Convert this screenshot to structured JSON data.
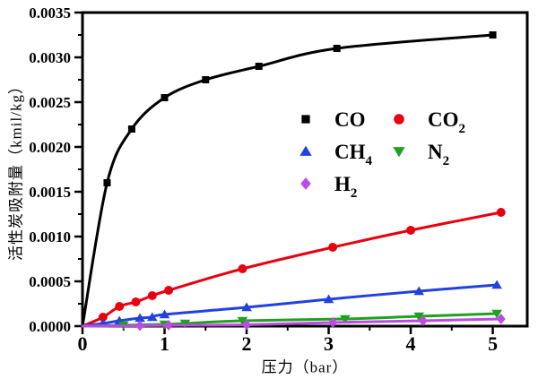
{
  "chart_data": {
    "type": "scatter",
    "title": "",
    "xlabel": "压力（bar）",
    "ylabel": "活性炭吸附量（kmil/kg）",
    "xlim": [
      0,
      5.42
    ],
    "ylim": [
      0,
      0.0035
    ],
    "x_tick_values": [
      0,
      1,
      2,
      3,
      4,
      5
    ],
    "x_tick_labels": [
      "0",
      "1",
      "2",
      "3",
      "4",
      "5"
    ],
    "x_minor_step": 0.5,
    "y_major_step": 0.0005,
    "y_minor_step": 0.00025,
    "y_tick_labels": [
      "0.0000",
      "0.0005",
      "0.0010",
      "0.0015",
      "0.0020",
      "0.0025",
      "0.0030",
      "0.0035"
    ],
    "grid": false,
    "legend_position": "inside-upper-right",
    "curves_start_at_origin": true,
    "series": [
      {
        "name": "CO",
        "label_base": "CO",
        "label_sub": "",
        "marker": "square",
        "color": "#000000",
        "points": [
          [
            0.3,
            0.0016
          ],
          [
            0.6,
            0.0022
          ],
          [
            1.0,
            0.00255
          ],
          [
            1.5,
            0.00275
          ],
          [
            2.15,
            0.0029
          ],
          [
            3.1,
            0.0031
          ],
          [
            5.0,
            0.00325
          ]
        ]
      },
      {
        "name": "CO2",
        "label_base": "CO",
        "label_sub": "2",
        "marker": "circle",
        "color": "#e8000f",
        "points": [
          [
            0.25,
            0.0001
          ],
          [
            0.45,
            0.00022
          ],
          [
            0.65,
            0.00027
          ],
          [
            0.85,
            0.00034
          ],
          [
            1.05,
            0.0004
          ],
          [
            1.95,
            0.00064
          ],
          [
            3.05,
            0.00088
          ],
          [
            4.0,
            0.00107
          ],
          [
            5.1,
            0.00127
          ]
        ]
      },
      {
        "name": "CH4",
        "label_base": "CH",
        "label_sub": "4",
        "marker": "triangle-up",
        "color": "#2142e0",
        "points": [
          [
            0.25,
            3e-05
          ],
          [
            0.45,
            6e-05
          ],
          [
            0.7,
            9e-05
          ],
          [
            0.85,
            0.0001
          ],
          [
            1.0,
            0.00013
          ],
          [
            2.0,
            0.00021
          ],
          [
            3.0,
            0.0003
          ],
          [
            4.1,
            0.00039
          ],
          [
            5.05,
            0.00046
          ]
        ]
      },
      {
        "name": "N2",
        "label_base": "N",
        "label_sub": "2",
        "marker": "triangle-down",
        "color": "#1fa11f",
        "points": [
          [
            0.5,
            1e-05
          ],
          [
            1.0,
            2e-05
          ],
          [
            1.25,
            3e-05
          ],
          [
            1.95,
            6e-05
          ],
          [
            3.2,
            8e-05
          ],
          [
            4.1,
            0.00011
          ],
          [
            5.05,
            0.00014
          ]
        ]
      },
      {
        "name": "H2",
        "label_base": "H",
        "label_sub": "2",
        "marker": "diamond",
        "color": "#bc4be0",
        "points": [
          [
            0.7,
            5e-06
          ],
          [
            1.05,
            1e-05
          ],
          [
            2.0,
            1.5e-05
          ],
          [
            3.05,
            4e-05
          ],
          [
            4.15,
            6e-05
          ],
          [
            5.1,
            8e-05
          ]
        ]
      }
    ]
  }
}
